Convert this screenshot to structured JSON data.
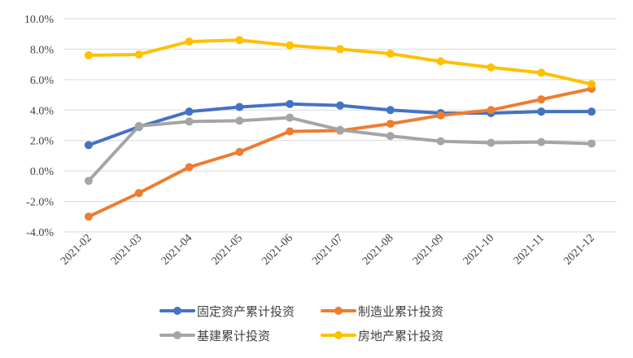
{
  "chart_data": {
    "type": "line",
    "title": "",
    "xlabel": "",
    "ylabel": "",
    "categories": [
      "2021-02",
      "2021-03",
      "2021-04",
      "2021-05",
      "2021-06",
      "2021-07",
      "2021-08",
      "2021-09",
      "2021-10",
      "2021-11",
      "2021-12"
    ],
    "y_ticks": [
      "-4.0%",
      "-2.0%",
      "0.0%",
      "2.0%",
      "4.0%",
      "6.0%",
      "8.0%",
      "10.0%"
    ],
    "ylim": [
      -4,
      10
    ],
    "grid": true,
    "legend_position": "bottom",
    "series": [
      {
        "name": "固定资产累计投资",
        "color": "#4472C4",
        "values": [
          1.7,
          2.9,
          3.9,
          4.2,
          4.4,
          4.3,
          4.0,
          3.8,
          3.8,
          3.9,
          3.9
        ]
      },
      {
        "name": "制造业累计投资",
        "color": "#ED7D31",
        "values": [
          -3.0,
          -1.45,
          0.25,
          1.25,
          2.6,
          2.65,
          3.1,
          3.65,
          4.0,
          4.7,
          5.4
        ]
      },
      {
        "name": "基建累计投资",
        "color": "#A5A5A5",
        "values": [
          -0.65,
          2.95,
          3.25,
          3.3,
          3.5,
          2.7,
          2.3,
          1.95,
          1.85,
          1.9,
          1.8
        ]
      },
      {
        "name": "房地产累计投资",
        "color": "#FFC000",
        "values": [
          7.6,
          7.65,
          8.5,
          8.6,
          8.25,
          8.0,
          7.7,
          7.2,
          6.8,
          6.45,
          5.7
        ]
      }
    ]
  }
}
